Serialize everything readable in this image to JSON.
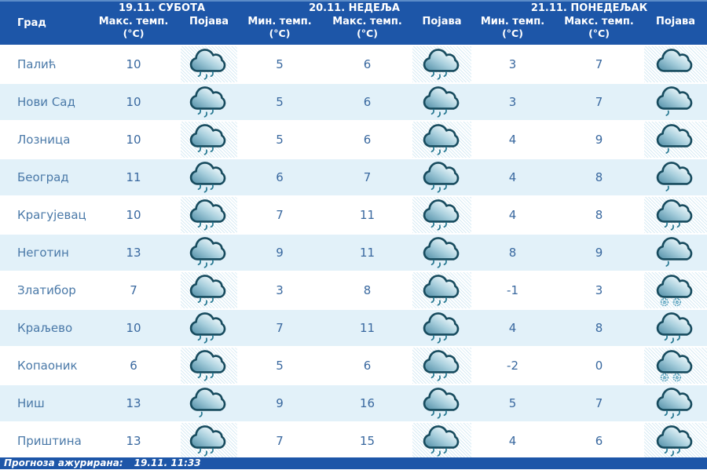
{
  "header": {
    "city_label": "Град",
    "days": [
      {
        "title": "19.11. СУБОТА",
        "columns": [
          {
            "label": "Макс. темп.",
            "unit": "(°C)"
          },
          {
            "label": "Појава",
            "unit": ""
          }
        ]
      },
      {
        "title": "20.11. НЕДЕЉА",
        "columns": [
          {
            "label": "Мин. темп.",
            "unit": "(°C)"
          },
          {
            "label": "Макс. темп.",
            "unit": "(°C)"
          },
          {
            "label": "Појава",
            "unit": ""
          }
        ]
      },
      {
        "title": "21.11. ПОНЕДЕЉАК",
        "columns": [
          {
            "label": "Мин. темп.",
            "unit": "(°C)"
          },
          {
            "label": "Макс. темп.",
            "unit": "(°C)"
          },
          {
            "label": "Појава",
            "unit": ""
          }
        ]
      }
    ]
  },
  "rows": [
    {
      "city": "Палић",
      "day1": {
        "max": "10",
        "icon": "rain"
      },
      "day2": {
        "min": "5",
        "max": "6",
        "icon": "rain"
      },
      "day3": {
        "min": "3",
        "max": "7",
        "icon": "cloud"
      }
    },
    {
      "city": "Нови Сад",
      "day1": {
        "max": "10",
        "icon": "rain"
      },
      "day2": {
        "min": "5",
        "max": "6",
        "icon": "rain"
      },
      "day3": {
        "min": "3",
        "max": "7",
        "icon": "light-rain"
      }
    },
    {
      "city": "Лозница",
      "day1": {
        "max": "10",
        "icon": "rain"
      },
      "day2": {
        "min": "5",
        "max": "6",
        "icon": "rain"
      },
      "day3": {
        "min": "4",
        "max": "9",
        "icon": "light-rain"
      }
    },
    {
      "city": "Београд",
      "day1": {
        "max": "11",
        "icon": "rain"
      },
      "day2": {
        "min": "6",
        "max": "7",
        "icon": "rain"
      },
      "day3": {
        "min": "4",
        "max": "8",
        "icon": "light-rain"
      }
    },
    {
      "city": "Крагујевац",
      "day1": {
        "max": "10",
        "icon": "rain"
      },
      "day2": {
        "min": "7",
        "max": "11",
        "icon": "rain"
      },
      "day3": {
        "min": "4",
        "max": "8",
        "icon": "rain"
      }
    },
    {
      "city": "Неготин",
      "day1": {
        "max": "13",
        "icon": "rain"
      },
      "day2": {
        "min": "9",
        "max": "11",
        "icon": "rain"
      },
      "day3": {
        "min": "8",
        "max": "9",
        "icon": "light-rain"
      }
    },
    {
      "city": "Златибор",
      "day1": {
        "max": "7",
        "icon": "rain"
      },
      "day2": {
        "min": "3",
        "max": "8",
        "icon": "rain"
      },
      "day3": {
        "min": "-1",
        "max": "3",
        "icon": "snow"
      }
    },
    {
      "city": "Краљево",
      "day1": {
        "max": "10",
        "icon": "rain"
      },
      "day2": {
        "min": "7",
        "max": "11",
        "icon": "rain"
      },
      "day3": {
        "min": "4",
        "max": "8",
        "icon": "rain"
      }
    },
    {
      "city": "Копаоник",
      "day1": {
        "max": "6",
        "icon": "rain"
      },
      "day2": {
        "min": "5",
        "max": "6",
        "icon": "rain"
      },
      "day3": {
        "min": "-2",
        "max": "0",
        "icon": "snow"
      }
    },
    {
      "city": "Ниш",
      "day1": {
        "max": "13",
        "icon": "light-rain"
      },
      "day2": {
        "min": "9",
        "max": "16",
        "icon": "rain"
      },
      "day3": {
        "min": "5",
        "max": "7",
        "icon": "rain"
      }
    },
    {
      "city": "Приштина",
      "day1": {
        "max": "13",
        "icon": "rain"
      },
      "day2": {
        "min": "7",
        "max": "15",
        "icon": "rain"
      },
      "day3": {
        "min": "4",
        "max": "6",
        "icon": "rain"
      }
    }
  ],
  "icons": {
    "rain": "rain-cloud-icon",
    "light-rain": "light-rain-cloud-icon",
    "cloud": "cloud-icon",
    "snow": "snow-cloud-icon"
  },
  "footer": {
    "label": "Прогноза ажурирана:",
    "time": "19.11. 11:33"
  },
  "colors": {
    "header_bg": "#1d56a8",
    "row_alt_bg": "#e2f1f9",
    "city_text": "#4a79a8",
    "temp_text": "#39689f",
    "footer_bg": "#1d56a8",
    "cloud_outline": "#174b5e",
    "rain_drop": "#2a7a93"
  }
}
